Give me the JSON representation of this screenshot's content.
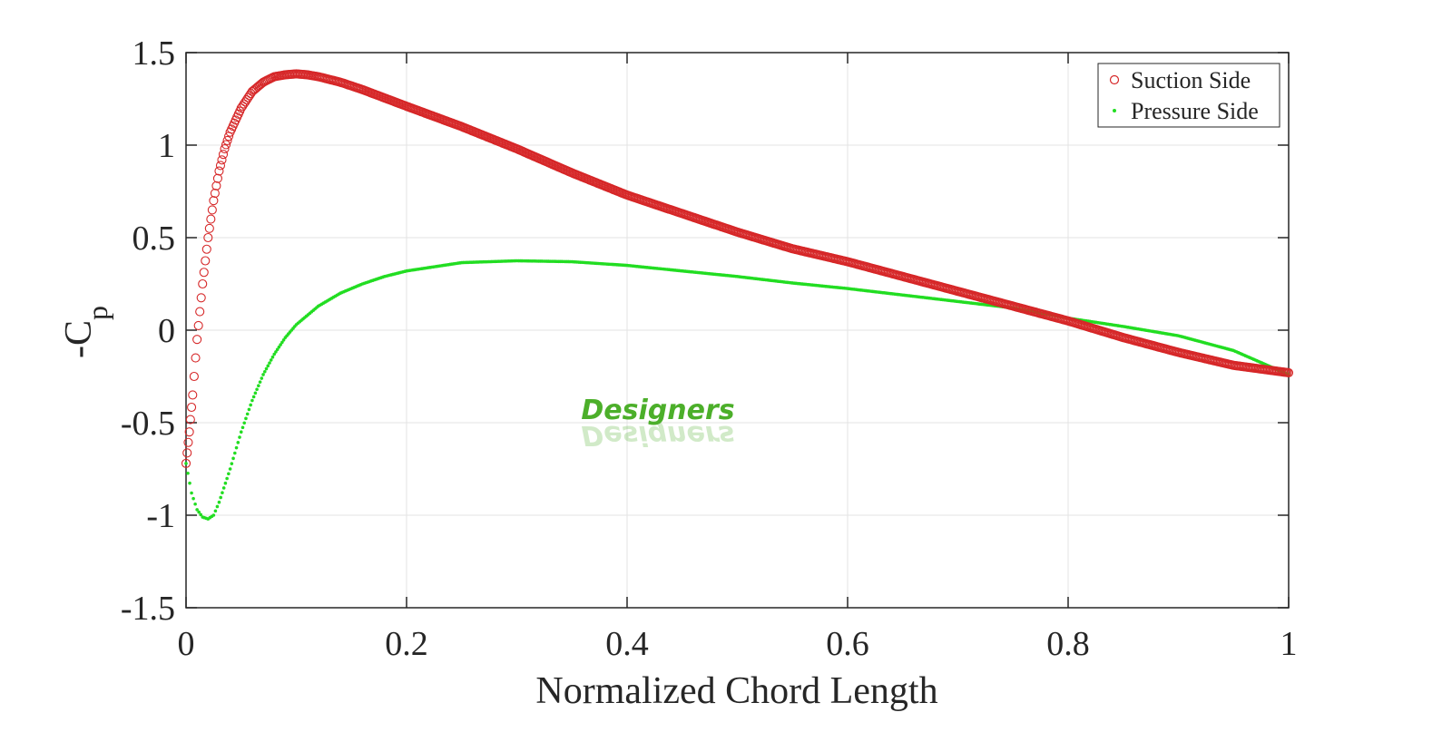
{
  "chart_data": {
    "type": "scatter",
    "xlabel": "Normalized Chord Length",
    "ylabel": "-C",
    "ylabel_subscript": "p",
    "xlim": [
      0,
      1
    ],
    "ylim": [
      -1.5,
      1.5
    ],
    "x_ticks": [
      0,
      0.2,
      0.4,
      0.6,
      0.8,
      1
    ],
    "x_tick_labels": [
      "0",
      "0.2",
      "0.4",
      "0.6",
      "0.8",
      "1"
    ],
    "y_ticks": [
      1.5,
      1,
      0.5,
      0,
      -0.5,
      -1,
      -1.5
    ],
    "y_tick_labels": [
      "1.5",
      "1",
      "0.5",
      "0",
      "-0.5",
      "-1",
      "-1.5"
    ],
    "grid": true,
    "legend_position": "top-right",
    "series": [
      {
        "name": "Suction Side",
        "marker": "open-circle",
        "color": "#d62728",
        "points": [
          [
            0.0,
            -0.72
          ],
          [
            0.003,
            -0.55
          ],
          [
            0.006,
            -0.35
          ],
          [
            0.01,
            -0.05
          ],
          [
            0.015,
            0.25
          ],
          [
            0.02,
            0.5
          ],
          [
            0.025,
            0.7
          ],
          [
            0.03,
            0.86
          ],
          [
            0.035,
            0.98
          ],
          [
            0.04,
            1.07
          ],
          [
            0.05,
            1.2
          ],
          [
            0.06,
            1.29
          ],
          [
            0.07,
            1.34
          ],
          [
            0.08,
            1.37
          ],
          [
            0.09,
            1.38
          ],
          [
            0.1,
            1.385
          ],
          [
            0.11,
            1.38
          ],
          [
            0.12,
            1.37
          ],
          [
            0.14,
            1.34
          ],
          [
            0.16,
            1.3
          ],
          [
            0.2,
            1.21
          ],
          [
            0.25,
            1.1
          ],
          [
            0.3,
            0.98
          ],
          [
            0.35,
            0.85
          ],
          [
            0.4,
            0.73
          ],
          [
            0.45,
            0.63
          ],
          [
            0.5,
            0.53
          ],
          [
            0.55,
            0.44
          ],
          [
            0.6,
            0.37
          ],
          [
            0.65,
            0.29
          ],
          [
            0.7,
            0.21
          ],
          [
            0.75,
            0.13
          ],
          [
            0.8,
            0.05
          ],
          [
            0.85,
            -0.04
          ],
          [
            0.9,
            -0.12
          ],
          [
            0.95,
            -0.19
          ],
          [
            1.0,
            -0.23
          ]
        ]
      },
      {
        "name": "Pressure Side",
        "marker": "dot",
        "color": "#22dd22",
        "points": [
          [
            0.0,
            -0.72
          ],
          [
            0.005,
            -0.88
          ],
          [
            0.01,
            -0.97
          ],
          [
            0.015,
            -1.01
          ],
          [
            0.02,
            -1.02
          ],
          [
            0.025,
            -1.0
          ],
          [
            0.03,
            -0.93
          ],
          [
            0.04,
            -0.75
          ],
          [
            0.05,
            -0.55
          ],
          [
            0.06,
            -0.38
          ],
          [
            0.07,
            -0.24
          ],
          [
            0.08,
            -0.13
          ],
          [
            0.09,
            -0.04
          ],
          [
            0.1,
            0.03
          ],
          [
            0.12,
            0.13
          ],
          [
            0.14,
            0.2
          ],
          [
            0.16,
            0.25
          ],
          [
            0.18,
            0.29
          ],
          [
            0.2,
            0.32
          ],
          [
            0.25,
            0.365
          ],
          [
            0.3,
            0.375
          ],
          [
            0.35,
            0.37
          ],
          [
            0.4,
            0.35
          ],
          [
            0.45,
            0.32
          ],
          [
            0.5,
            0.29
          ],
          [
            0.55,
            0.255
          ],
          [
            0.6,
            0.225
          ],
          [
            0.65,
            0.19
          ],
          [
            0.7,
            0.155
          ],
          [
            0.75,
            0.12
          ],
          [
            0.8,
            0.065
          ],
          [
            0.85,
            0.02
          ],
          [
            0.9,
            -0.03
          ],
          [
            0.95,
            -0.11
          ],
          [
            1.0,
            -0.24
          ]
        ]
      }
    ]
  },
  "watermark": {
    "text": "Designers",
    "color": "#4caf2a"
  }
}
